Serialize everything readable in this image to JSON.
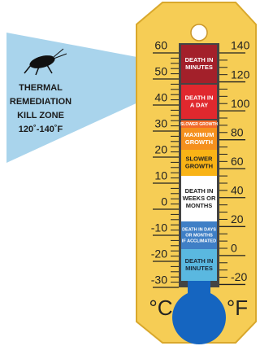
{
  "callout": {
    "lines": [
      "THERMAL",
      "REMEDIATION",
      "KILL ZONE",
      "120˚-140˚F"
    ]
  },
  "thermometer": {
    "celsius_unit": "°C",
    "fahrenheit_unit": "°F",
    "celsius_ticks": [
      60,
      50,
      40,
      30,
      20,
      10,
      0,
      -10,
      -20,
      -30
    ],
    "fahrenheit_ticks": [
      140,
      120,
      100,
      80,
      60,
      40,
      20,
      0,
      -20
    ],
    "zones": [
      {
        "label": [
          "DEATH IN",
          "MINUTES"
        ],
        "color": "#a3202a",
        "text_color": "#ffffff"
      },
      {
        "label": [
          "DEATH IN",
          "A DAY"
        ],
        "color": "#e0282e",
        "text_color": "#ffffff"
      },
      {
        "label": [
          "SLOWER GROWTH"
        ],
        "color": "#f26a2a",
        "text_color": "#ffffff"
      },
      {
        "label": [
          "MAXIMUM",
          "GROWTH"
        ],
        "color": "#f5901e",
        "text_color": "#ffffff"
      },
      {
        "label": [
          "SLOWER",
          "GROWTH"
        ],
        "color": "#f9b316",
        "text_color": "#222222"
      },
      {
        "label": [
          "DEATH IN",
          "WEEKS OR",
          "MONTHS"
        ],
        "color": "#ffffff",
        "text_color": "#222222"
      },
      {
        "label": [
          "DEATH IN DAYS",
          "OR MONTHS",
          "IF ACCLIMATED"
        ],
        "color": "#3f7fc6",
        "text_color": "#ffffff"
      },
      {
        "label": [
          "DEATH IN",
          "MINUTES"
        ],
        "color": "#5ab8e0",
        "text_color": "#1a2a3a"
      }
    ]
  }
}
